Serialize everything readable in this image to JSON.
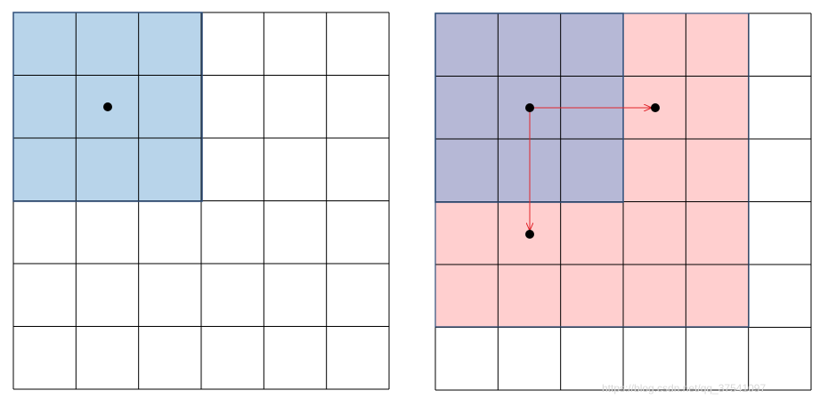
{
  "watermark": "https://blog.csdn.net/qq_37541097"
}
